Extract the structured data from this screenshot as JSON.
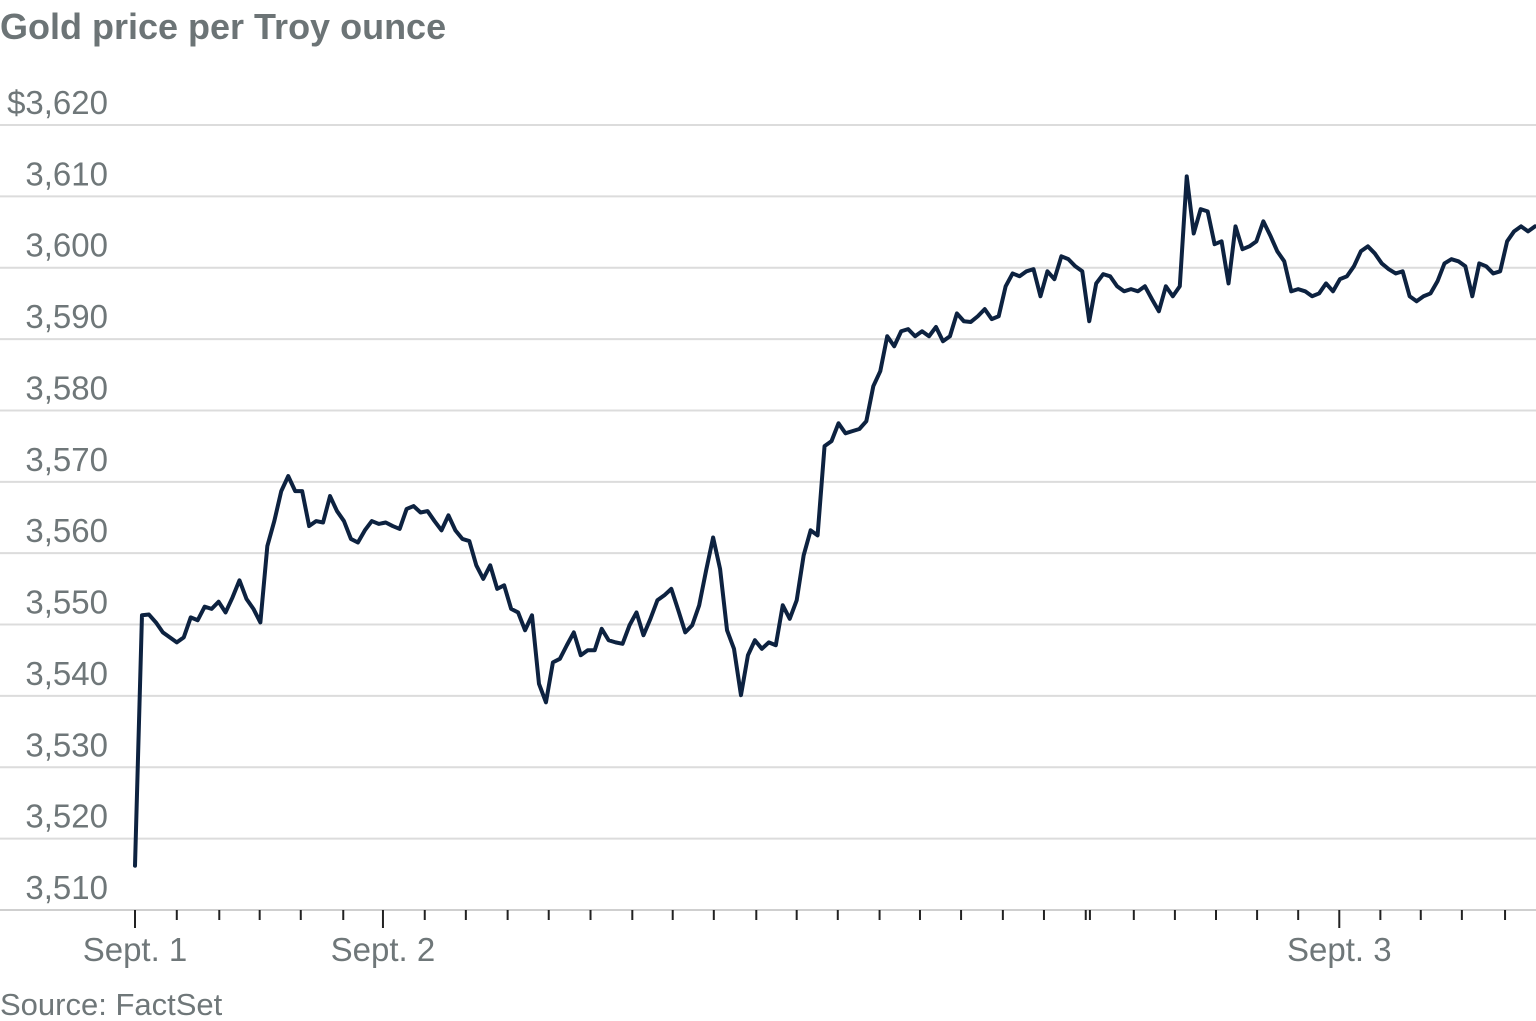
{
  "chart_data": {
    "type": "line",
    "title": "Gold price per Troy ounce",
    "source": "Source: FactSet",
    "ylim": [
      3510,
      3620
    ],
    "yticks": [
      {
        "value": 3510,
        "label": "3,510"
      },
      {
        "value": 3520,
        "label": "3,520"
      },
      {
        "value": 3530,
        "label": "3,530"
      },
      {
        "value": 3540,
        "label": "3,540"
      },
      {
        "value": 3550,
        "label": "3,550"
      },
      {
        "value": 3560,
        "label": "3,560"
      },
      {
        "value": 3570,
        "label": "3,570"
      },
      {
        "value": 3580,
        "label": "3,580"
      },
      {
        "value": 3590,
        "label": "3,590"
      },
      {
        "value": 3600,
        "label": "3,600"
      },
      {
        "value": 3610,
        "label": "3,610"
      },
      {
        "value": 3620,
        "label": "$3,620"
      }
    ],
    "grid": true,
    "xlim": [
      0,
      201
    ],
    "xticks": [
      {
        "value": 0,
        "label": "Sept. 1"
      },
      {
        "value": 35.6,
        "label": "Sept. 2"
      },
      {
        "value": 172.9,
        "label": "Sept. 3"
      }
    ],
    "xminorticks": [
      6.0,
      12.1,
      17.9,
      23.8,
      29.9,
      41.6,
      47.5,
      53.5,
      59.4,
      65.4,
      71.4,
      77.2,
      83.1,
      89.2,
      95.0,
      100.9,
      106.9,
      112.7,
      118.6,
      124.6,
      130.5,
      136.5,
      137.1,
      143.4,
      149.3,
      155.2,
      161.1,
      167.0,
      178.8,
      184.6,
      190.5,
      196.7
    ],
    "series": [
      {
        "name": "Gold price",
        "color": "#0d2240",
        "values": [
          3516.2,
          3551.3,
          3551.4,
          3550.3,
          3548.9,
          3548.2,
          3547.5,
          3548.2,
          3551.0,
          3550.6,
          3552.5,
          3552.2,
          3553.2,
          3551.7,
          3553.8,
          3556.2,
          3553.6,
          3552.2,
          3550.3,
          3561.0,
          3564.5,
          3568.7,
          3570.8,
          3568.7,
          3568.7,
          3563.8,
          3564.5,
          3564.3,
          3568.0,
          3565.9,
          3564.5,
          3562.0,
          3561.5,
          3563.2,
          3564.5,
          3564.1,
          3564.3,
          3563.8,
          3563.4,
          3566.2,
          3566.6,
          3565.7,
          3565.9,
          3564.5,
          3563.2,
          3565.3,
          3563.2,
          3562.0,
          3561.7,
          3558.3,
          3556.4,
          3558.3,
          3555.0,
          3555.5,
          3552.2,
          3551.7,
          3549.2,
          3551.3,
          3541.7,
          3539.1,
          3544.7,
          3545.2,
          3547.1,
          3548.9,
          3545.7,
          3546.4,
          3546.4,
          3549.4,
          3547.8,
          3547.5,
          3547.3,
          3549.9,
          3551.7,
          3548.5,
          3550.8,
          3553.4,
          3554.1,
          3555.0,
          3552.0,
          3548.9,
          3549.9,
          3552.7,
          3557.6,
          3562.2,
          3557.8,
          3549.2,
          3546.6,
          3540.1,
          3545.7,
          3547.8,
          3546.6,
          3547.5,
          3547.1,
          3552.7,
          3550.8,
          3553.4,
          3559.7,
          3563.2,
          3562.5,
          3575.0,
          3575.7,
          3578.2,
          3576.8,
          3577.1,
          3577.4,
          3578.5,
          3583.4,
          3585.5,
          3590.4,
          3589.0,
          3591.1,
          3591.4,
          3590.4,
          3591.1,
          3590.4,
          3591.7,
          3589.7,
          3590.4,
          3593.6,
          3592.5,
          3592.4,
          3593.2,
          3594.2,
          3592.8,
          3593.2,
          3597.4,
          3599.2,
          3598.8,
          3599.5,
          3599.8,
          3596.0,
          3599.5,
          3598.4,
          3601.6,
          3601.2,
          3600.2,
          3599.5,
          3592.5,
          3597.8,
          3599.1,
          3598.8,
          3597.4,
          3596.7,
          3597.0,
          3596.7,
          3597.4,
          3595.6,
          3593.9,
          3597.4,
          3596.0,
          3597.4,
          3612.8,
          3604.8,
          3608.2,
          3607.9,
          3603.3,
          3603.7,
          3597.8,
          3605.8,
          3602.6,
          3603.0,
          3603.7,
          3606.5,
          3604.5,
          3602.3,
          3600.9,
          3596.7,
          3597.0,
          3596.7,
          3596.0,
          3596.4,
          3597.8,
          3596.7,
          3598.4,
          3598.8,
          3600.2,
          3602.3,
          3603.0,
          3602.0,
          3600.6,
          3599.8,
          3599.2,
          3599.5,
          3596.0,
          3595.3,
          3596.0,
          3596.4,
          3598.1,
          3600.6,
          3601.2,
          3600.9,
          3600.2,
          3596.0,
          3600.6,
          3600.2,
          3599.2,
          3599.5,
          3603.7,
          3605.1,
          3605.8,
          3605.1,
          3605.8
        ]
      }
    ]
  }
}
